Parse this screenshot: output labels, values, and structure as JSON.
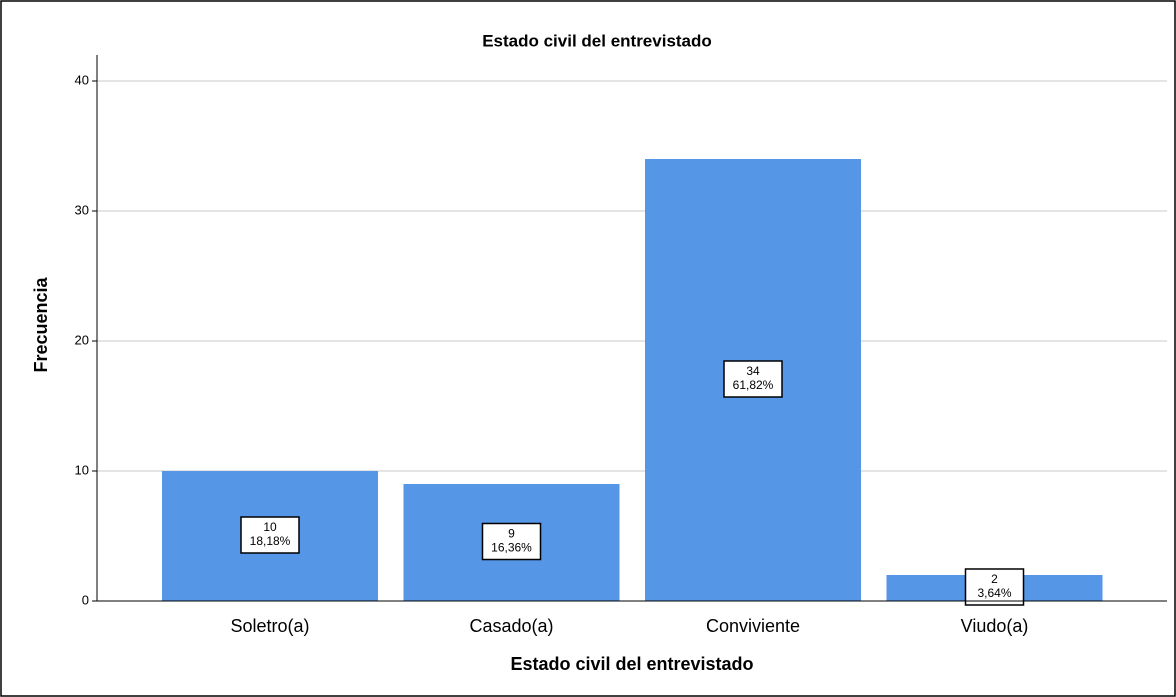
{
  "chart_data": {
    "type": "bar",
    "title": "Estado civil del entrevistado",
    "x_label": "Estado civil del entrevistado",
    "y_label": "Frecuencia",
    "categories": [
      "Soletro(a)",
      "Casado(a)",
      "Conviviente",
      "Viudo(a)"
    ],
    "values": [
      10,
      9,
      34,
      2
    ],
    "percentages": [
      18.18,
      16.36,
      61.82,
      3.64
    ],
    "percentage_labels": [
      "18,18%",
      "16,36%",
      "61,82%",
      "3,64%"
    ],
    "color": "#5596e6",
    "ylim": [
      0,
      42
    ],
    "yticks": [
      0,
      10,
      20,
      30,
      40
    ],
    "grid": true
  }
}
